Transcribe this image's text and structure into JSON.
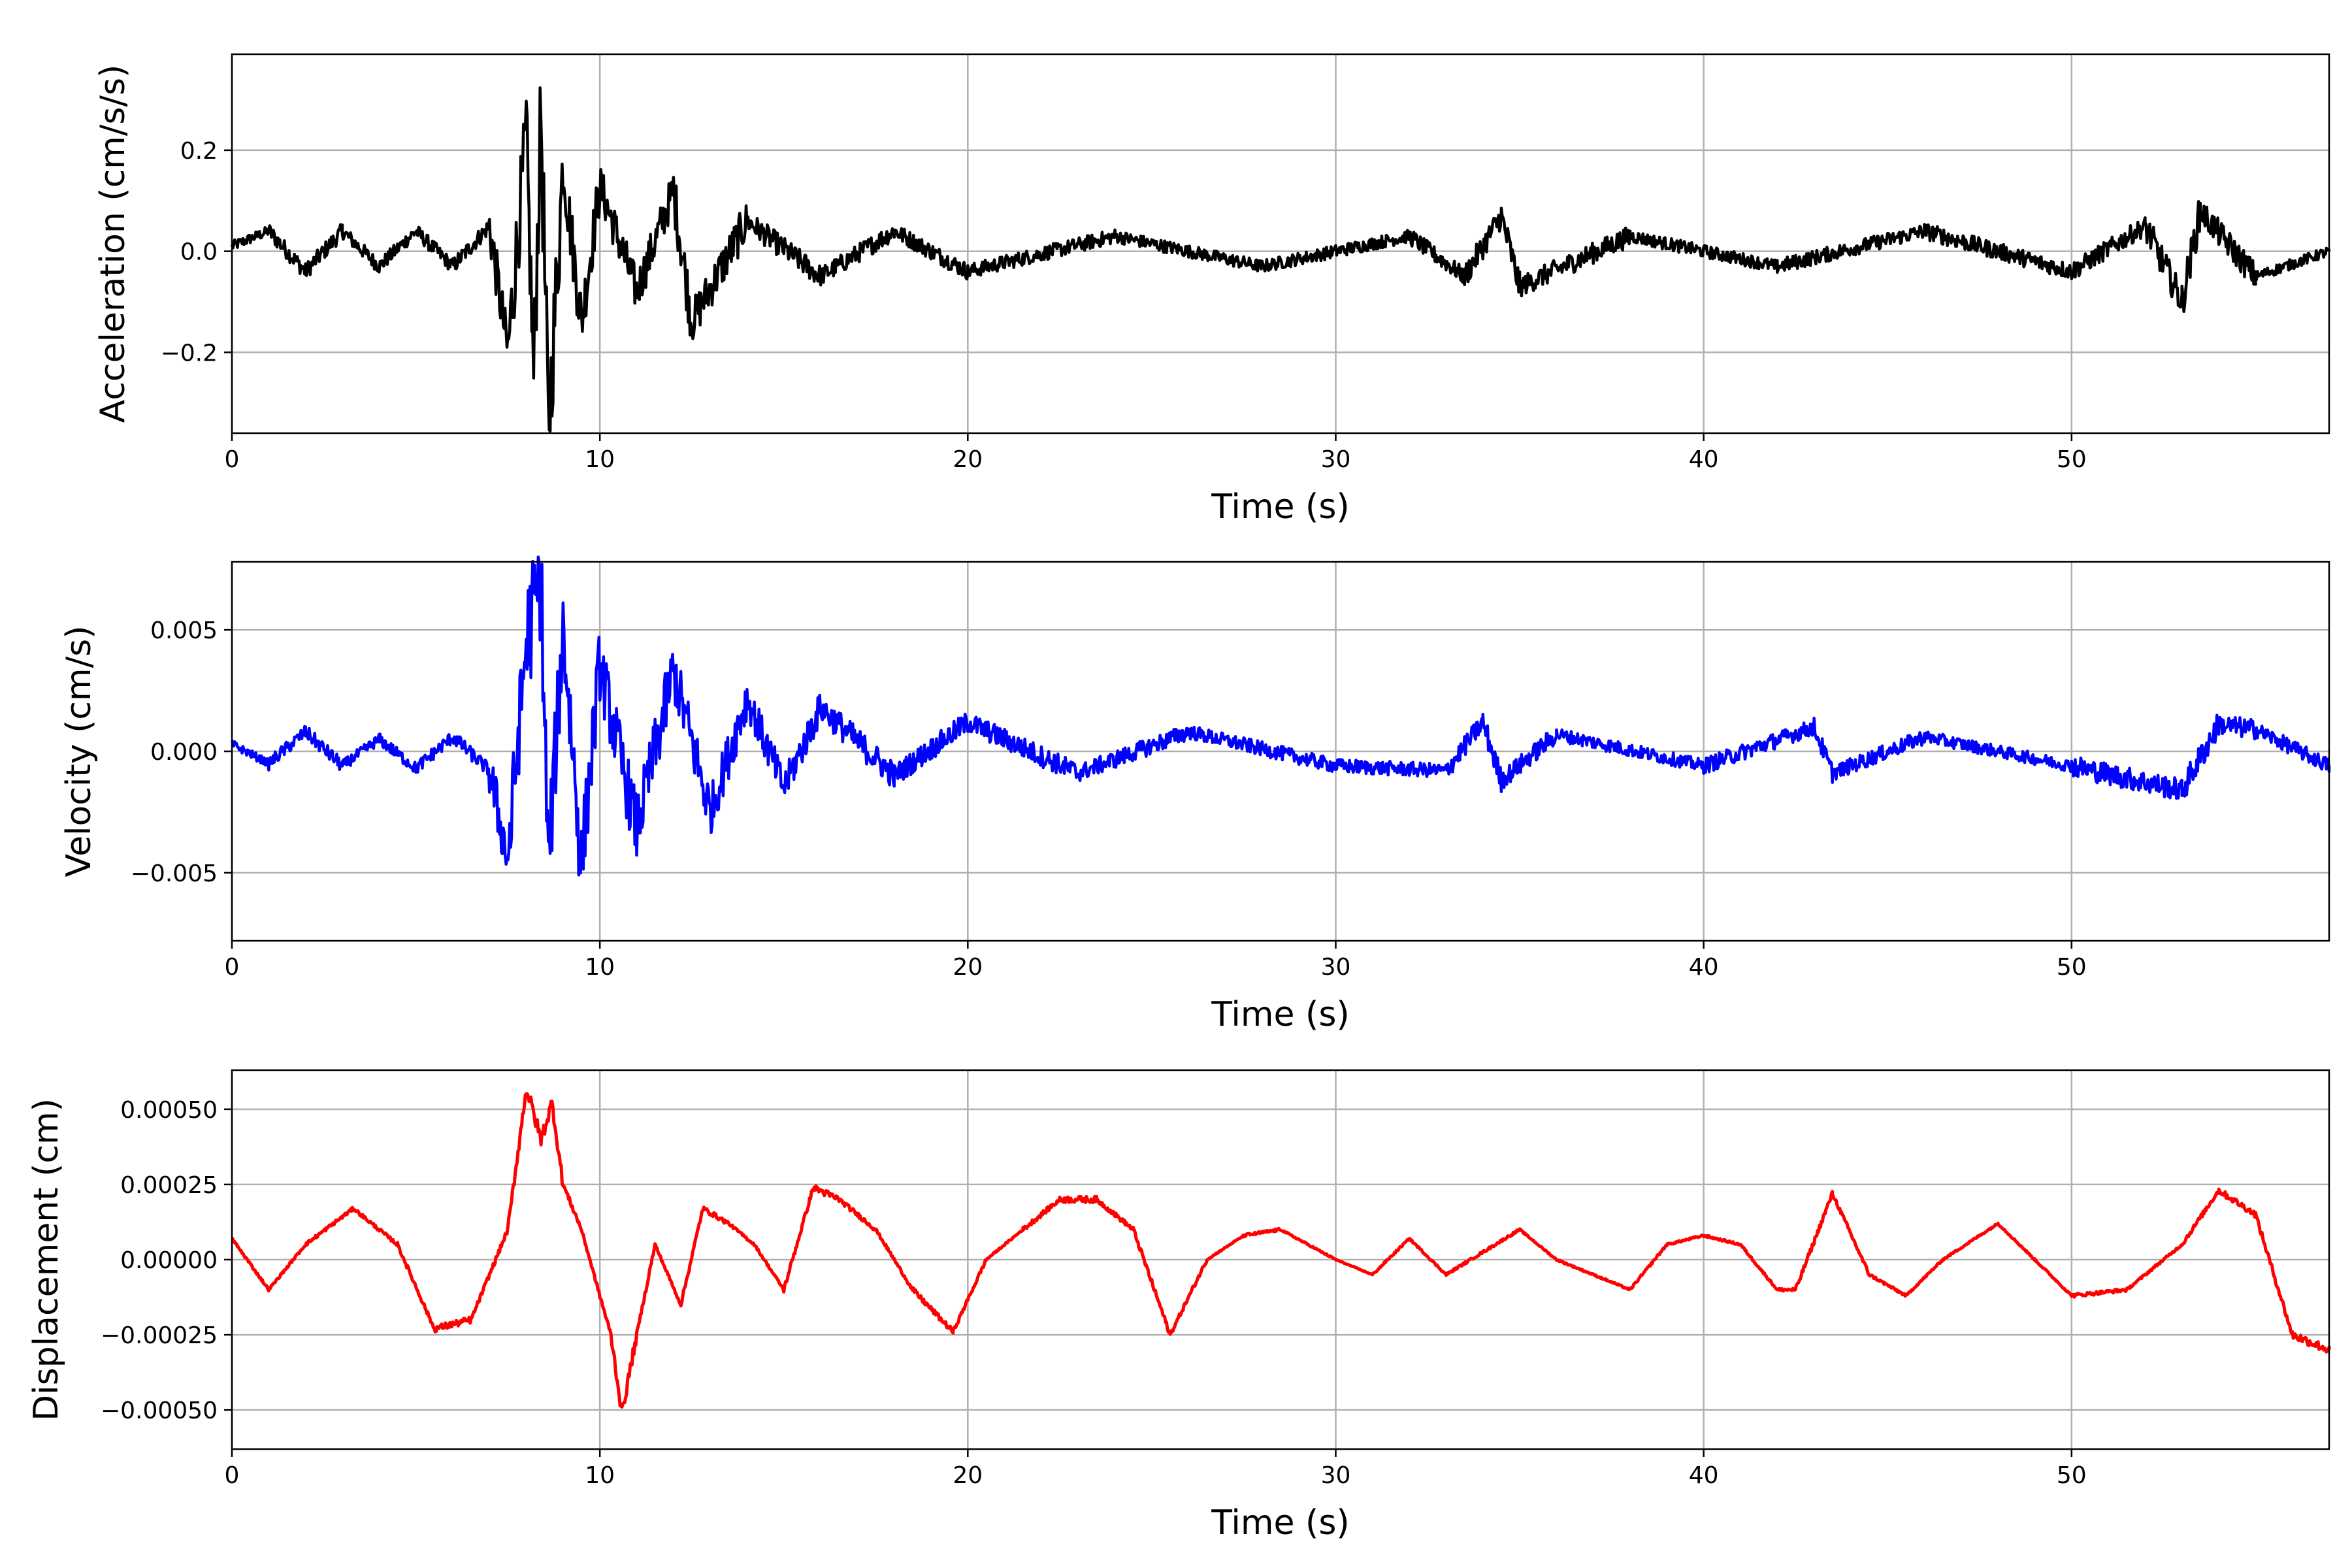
{
  "chart_data": [
    {
      "type": "line",
      "xlabel": "Time (s)",
      "ylabel": "Acceleration (cm/s/s)",
      "xlim": [
        0,
        57
      ],
      "ylim": [
        -0.36,
        0.39
      ],
      "xticks": [
        0,
        10,
        20,
        30,
        40,
        50
      ],
      "xtick_labels": [
        "0",
        "10",
        "20",
        "30",
        "40",
        "50"
      ],
      "yticks": [
        -0.2,
        0.0,
        0.2
      ],
      "ytick_labels": [
        "−0.2",
        "0.0",
        "0.2"
      ],
      "grid": true,
      "series": [
        {
          "color": "#000000",
          "x": [
            0,
            1,
            2,
            3,
            4,
            5,
            6,
            7,
            7.5,
            8,
            8.2,
            8.4,
            8.6,
            9,
            9.5,
            10,
            11,
            12,
            12.5,
            14,
            16,
            18,
            20,
            24,
            28,
            32,
            33.5,
            34.5,
            35,
            38,
            42,
            46,
            50,
            52,
            53,
            53.5,
            55,
            57
          ],
          "y": [
            0.01,
            0.04,
            -0.04,
            0.04,
            -0.03,
            0.04,
            -0.03,
            0.05,
            -0.2,
            0.23,
            -0.25,
            0.28,
            -0.36,
            0.17,
            -0.14,
            0.13,
            -0.08,
            0.12,
            -0.14,
            0.06,
            -0.05,
            0.04,
            -0.04,
            0.03,
            -0.03,
            0.03,
            -0.05,
            0.07,
            -0.07,
            0.03,
            -0.03,
            0.04,
            -0.04,
            0.05,
            -0.1,
            0.08,
            -0.05,
            0.0
          ]
        }
      ]
    },
    {
      "type": "line",
      "xlabel": "Time (s)",
      "ylabel": "Velocity (cm/s)",
      "xlim": [
        0,
        57
      ],
      "ylim": [
        -0.0078,
        0.0078
      ],
      "xticks": [
        0,
        10,
        20,
        30,
        40,
        50
      ],
      "xtick_labels": [
        "0",
        "10",
        "20",
        "30",
        "40",
        "50"
      ],
      "yticks": [
        -0.005,
        0.0,
        0.005
      ],
      "ytick_labels": [
        "−0.005",
        "0.000",
        "0.005"
      ],
      "grid": true,
      "series": [
        {
          "color": "#0000ff",
          "x": [
            0,
            1,
            2,
            3,
            4,
            5,
            6,
            7,
            7.5,
            8,
            8.4,
            8.6,
            9,
            9.5,
            10,
            11,
            12,
            13,
            14,
            15,
            16,
            18,
            20,
            23,
            26,
            30,
            33,
            34,
            34.5,
            36,
            40,
            43,
            43.5,
            46,
            50,
            53,
            54,
            55,
            57
          ],
          "y": [
            0.0003,
            -0.0005,
            0.0008,
            -0.0006,
            0.0005,
            -0.0007,
            0.0006,
            -0.0008,
            -0.0045,
            0.0045,
            0.0071,
            -0.0048,
            0.0051,
            -0.0046,
            0.0035,
            -0.0032,
            0.0033,
            -0.0025,
            0.0022,
            -0.0015,
            0.0018,
            -0.001,
            0.0012,
            -0.0009,
            0.0008,
            -0.0006,
            -0.0008,
            0.0012,
            -0.0012,
            0.0007,
            -0.0006,
            0.001,
            -0.0009,
            0.0006,
            -0.0006,
            -0.0016,
            0.0011,
            0.0009,
            -0.0006
          ]
        }
      ]
    },
    {
      "type": "line",
      "xlabel": "Time (s)",
      "ylabel": "Displacement (cm)",
      "xlim": [
        0,
        57
      ],
      "ylim": [
        -0.00063,
        0.00063
      ],
      "xticks": [
        0,
        10,
        20,
        30,
        40,
        50
      ],
      "xtick_labels": [
        "0",
        "10",
        "20",
        "30",
        "40",
        "50"
      ],
      "yticks": [
        -0.0005,
        -0.00025,
        0.0,
        0.00025,
        0.0005
      ],
      "ytick_labels": [
        "−0.00050",
        "−0.00025",
        "0.00000",
        "0.00025",
        "0.00050"
      ],
      "grid": true,
      "series": [
        {
          "color": "#ff0000",
          "x": [
            0,
            1,
            2,
            3.3,
            4.5,
            5.5,
            6.5,
            7.5,
            8,
            8.4,
            8.7,
            9,
            9.5,
            10,
            10.3,
            10.6,
            11,
            11.5,
            12.2,
            12.8,
            13.5,
            14.2,
            15,
            15.8,
            16.5,
            17.5,
            18.5,
            19.6,
            20.5,
            21.5,
            22.5,
            23.5,
            24.5,
            25.5,
            26.5,
            27.5,
            28.5,
            30,
            31,
            32,
            33,
            35,
            36,
            38,
            39,
            40,
            41,
            42,
            42.5,
            43.5,
            44.5,
            45.5,
            46.5,
            48,
            49,
            50,
            51.5,
            53,
            54,
            55,
            56,
            57
          ],
          "y": [
            7e-05,
            -0.0001,
            5e-05,
            0.00017,
            5e-05,
            -0.00023,
            -0.0002,
            0.0001,
            0.00057,
            0.0004,
            0.00052,
            0.00025,
            0.0001,
            -0.00012,
            -0.00025,
            -0.00051,
            -0.00025,
            5e-05,
            -0.00015,
            0.00017,
            0.00012,
            5e-05,
            -0.0001,
            0.00024,
            0.0002,
            0.0001,
            -0.0001,
            -0.00024,
            0.0,
            0.0001,
            0.0002,
            0.0002,
            0.0001,
            -0.00025,
            0.0,
            8e-05,
            0.0001,
            0.0,
            -5e-05,
            7e-05,
            -5e-05,
            0.0001,
            0.0,
            -0.0001,
            5e-05,
            8e-05,
            5e-05,
            -0.0001,
            -0.0001,
            0.00022,
            -5e-05,
            -0.00012,
            0.0,
            0.00012,
            0.0,
            -0.00012,
            -0.0001,
            5e-05,
            0.00023,
            0.00015,
            -0.00025,
            -0.0003
          ]
        }
      ]
    }
  ]
}
